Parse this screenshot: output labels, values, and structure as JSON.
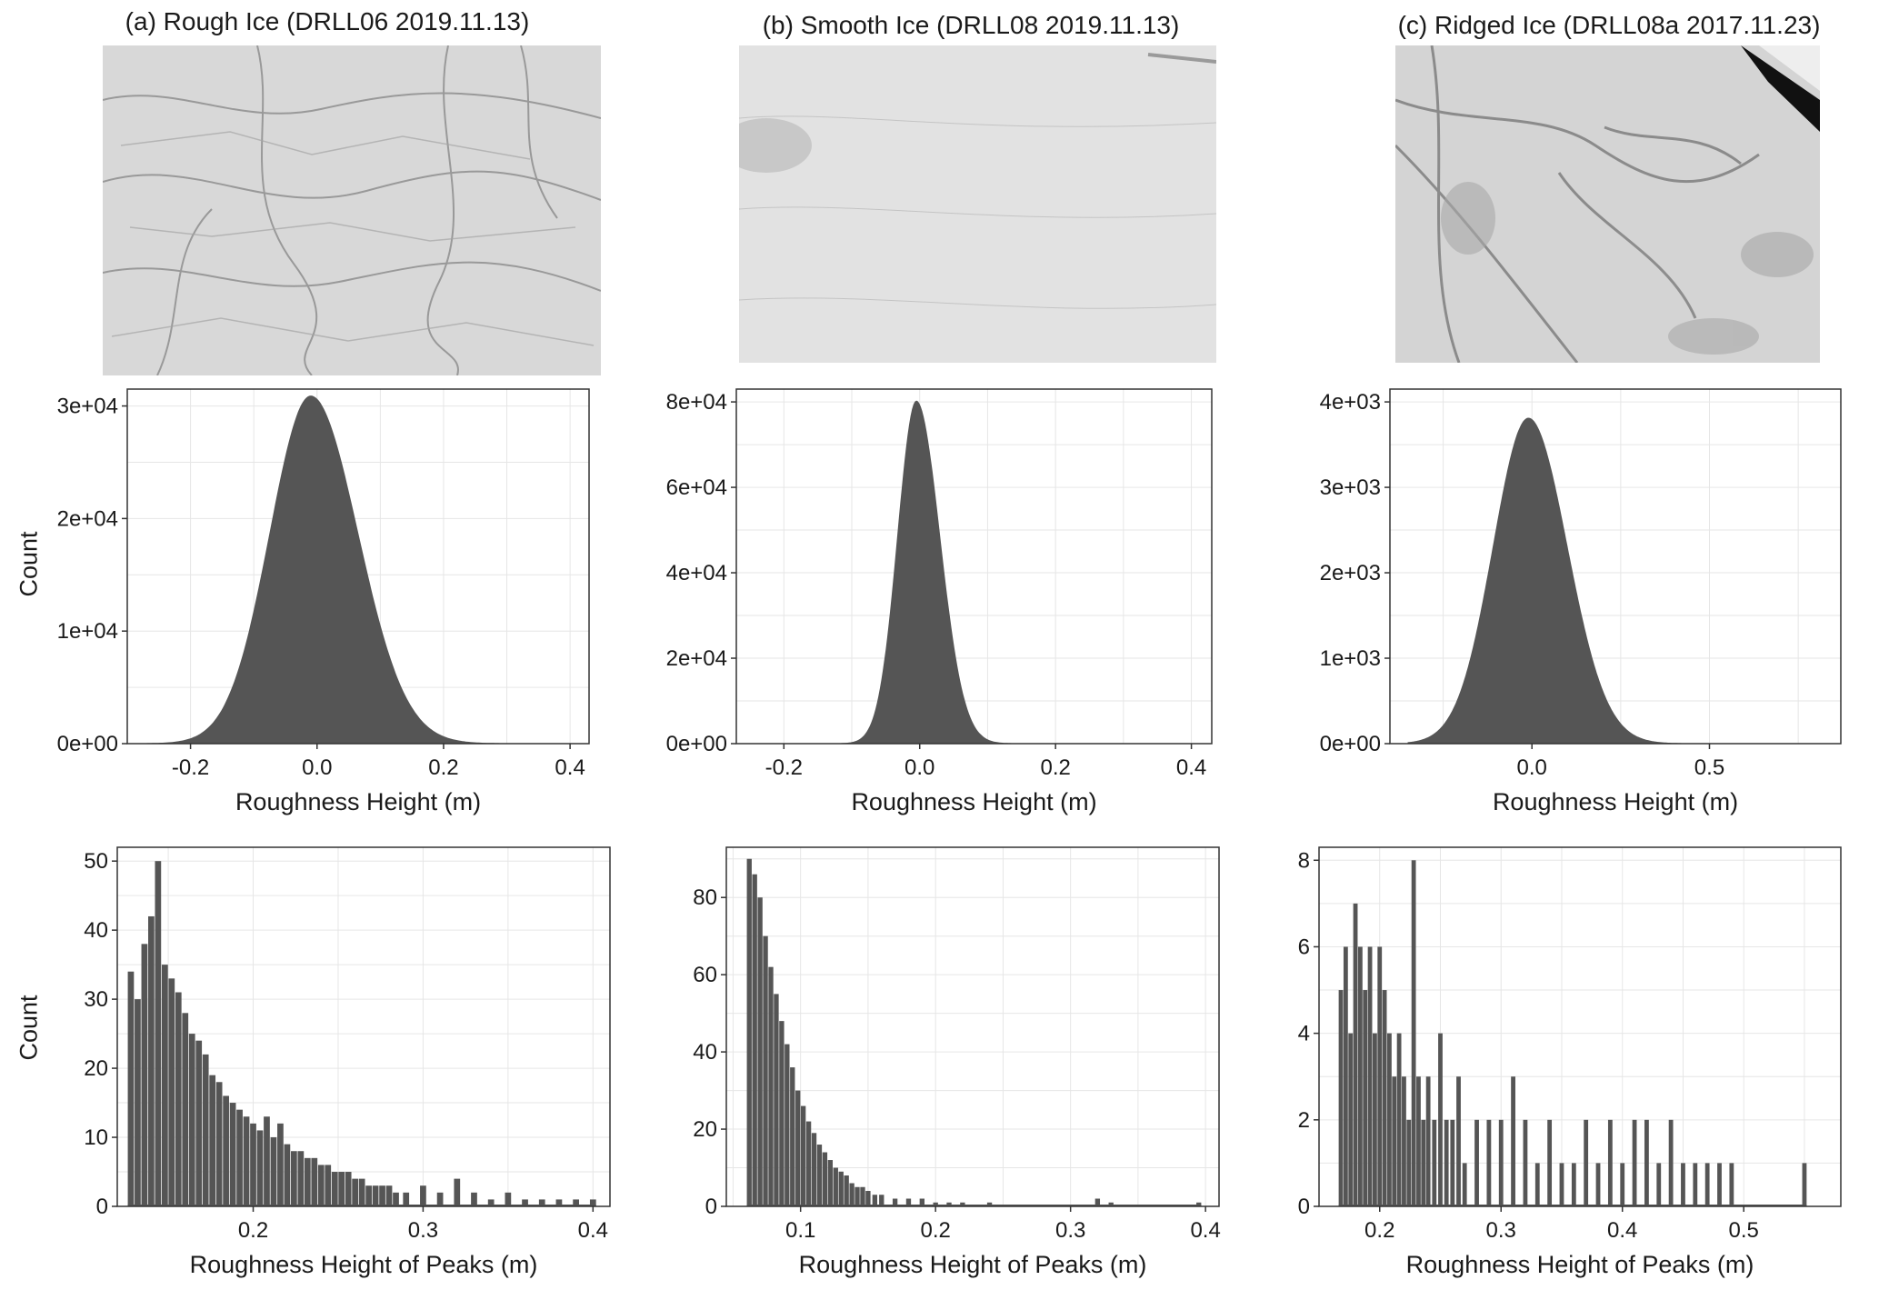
{
  "panels": [
    {
      "title": "(a) Rough Ice (DRLL06 2019.11.13)",
      "photo": "rough-ice-aerial-photo",
      "height_hist": {
        "type": "bar",
        "xlabel": "Roughness Height (m)",
        "ylabel": "Count",
        "xlim": [
          -0.3,
          0.43
        ],
        "ylim": [
          0,
          31500
        ],
        "xticks": [
          -0.2,
          0.0,
          0.2,
          0.4
        ],
        "xtick_labels": [
          "-0.2",
          "0.0",
          "0.2",
          "0.4"
        ],
        "yticks": [
          0,
          10000,
          20000,
          30000
        ],
        "ytick_labels": [
          "0e+00",
          "1e+04",
          "2e+04",
          "3e+04"
        ],
        "distribution": {
          "mode": -0.01,
          "peak": 30800,
          "sigma_left": 0.065,
          "sigma_right": 0.075,
          "x_min": -0.27,
          "x_max": 0.4
        },
        "grid": true
      },
      "peak_hist": {
        "type": "bar",
        "xlabel": "Roughness Height of Peaks (m)",
        "ylabel": "Count",
        "xlim": [
          0.12,
          0.41
        ],
        "ylim": [
          0,
          52
        ],
        "xticks": [
          0.2,
          0.3,
          0.4
        ],
        "xtick_labels": [
          "0.2",
          "0.3",
          "0.4"
        ],
        "yticks": [
          0,
          10,
          20,
          30,
          40,
          50
        ],
        "ytick_labels": [
          "0",
          "10",
          "20",
          "30",
          "40",
          "50"
        ],
        "x": [
          0.128,
          0.132,
          0.136,
          0.14,
          0.144,
          0.148,
          0.152,
          0.156,
          0.16,
          0.164,
          0.168,
          0.172,
          0.176,
          0.18,
          0.184,
          0.188,
          0.192,
          0.196,
          0.2,
          0.204,
          0.208,
          0.212,
          0.216,
          0.22,
          0.224,
          0.228,
          0.232,
          0.236,
          0.24,
          0.244,
          0.248,
          0.252,
          0.256,
          0.26,
          0.264,
          0.268,
          0.272,
          0.276,
          0.28,
          0.284,
          0.29,
          0.3,
          0.31,
          0.32,
          0.33,
          0.34,
          0.35,
          0.36,
          0.37,
          0.38,
          0.39,
          0.4
        ],
        "values": [
          34,
          30,
          38,
          42,
          50,
          35,
          33,
          31,
          28,
          25,
          24,
          22,
          19,
          18,
          16,
          15,
          14,
          13,
          12,
          11,
          13,
          10,
          12,
          9,
          8,
          8,
          7,
          7,
          6,
          6,
          5,
          5,
          5,
          4,
          4,
          3,
          3,
          3,
          3,
          2,
          2,
          3,
          2,
          4,
          2,
          1,
          2,
          1,
          1,
          1,
          1,
          1
        ],
        "grid": true
      }
    },
    {
      "title": "(b) Smooth Ice (DRLL08 2019.11.13)",
      "photo": "smooth-ice-aerial-photo",
      "height_hist": {
        "type": "bar",
        "xlabel": "Roughness Height (m)",
        "ylabel": "",
        "xlim": [
          -0.27,
          0.43
        ],
        "ylim": [
          0,
          83000
        ],
        "xticks": [
          -0.2,
          0.0,
          0.2,
          0.4
        ],
        "xtick_labels": [
          "-0.2",
          "0.0",
          "0.2",
          "0.4"
        ],
        "yticks": [
          0,
          20000,
          40000,
          60000,
          80000
        ],
        "ytick_labels": [
          "0e+00",
          "2e+04",
          "4e+04",
          "6e+04",
          "8e+04"
        ],
        "distribution": {
          "mode": -0.005,
          "peak": 80000,
          "sigma_left": 0.028,
          "sigma_right": 0.035,
          "x_min": -0.16,
          "x_max": 0.4
        },
        "grid": true
      },
      "peak_hist": {
        "type": "bar",
        "xlabel": "Roughness Height of Peaks (m)",
        "ylabel": "",
        "xlim": [
          0.045,
          0.41
        ],
        "ylim": [
          0,
          93
        ],
        "xticks": [
          0.1,
          0.2,
          0.3,
          0.4
        ],
        "xtick_labels": [
          "0.1",
          "0.2",
          "0.3",
          "0.4"
        ],
        "yticks": [
          0,
          20,
          40,
          60,
          80
        ],
        "ytick_labels": [
          "0",
          "20",
          "40",
          "60",
          "80"
        ],
        "x": [
          0.062,
          0.066,
          0.07,
          0.074,
          0.078,
          0.082,
          0.086,
          0.09,
          0.094,
          0.098,
          0.102,
          0.106,
          0.11,
          0.114,
          0.118,
          0.122,
          0.126,
          0.13,
          0.134,
          0.138,
          0.142,
          0.146,
          0.15,
          0.155,
          0.16,
          0.17,
          0.18,
          0.19,
          0.2,
          0.21,
          0.22,
          0.24,
          0.32,
          0.33,
          0.395
        ],
        "values": [
          90,
          86,
          80,
          70,
          62,
          55,
          48,
          42,
          36,
          30,
          26,
          22,
          19,
          16,
          14,
          12,
          10,
          9,
          8,
          6,
          5,
          5,
          4,
          3,
          3,
          2,
          2,
          2,
          1,
          1,
          1,
          1,
          2,
          1,
          1
        ],
        "grid": true
      }
    },
    {
      "title": "(c) Ridged Ice (DRLL08a 2017.11.23)",
      "photo": "ridged-ice-aerial-photo",
      "height_hist": {
        "type": "bar",
        "xlabel": "Roughness Height (m)",
        "ylabel": "",
        "xlim": [
          -0.4,
          0.87
        ],
        "ylim": [
          0,
          4150
        ],
        "xticks": [
          0.0,
          0.5
        ],
        "xtick_labels": [
          "0.0",
          "0.5"
        ],
        "yticks": [
          0,
          1000,
          2000,
          3000,
          4000
        ],
        "ytick_labels": [
          "0e+00",
          "1e+03",
          "2e+03",
          "3e+03",
          "4e+03"
        ],
        "distribution": {
          "mode": -0.01,
          "peak": 3800,
          "sigma_left": 0.1,
          "sigma_right": 0.11,
          "x_min": -0.35,
          "x_max": 0.55
        },
        "grid": true
      },
      "peak_hist": {
        "type": "bar",
        "xlabel": "Roughness Height of Peaks (m)",
        "ylabel": "",
        "xlim": [
          0.15,
          0.58
        ],
        "ylim": [
          0,
          8.3
        ],
        "xticks": [
          0.2,
          0.3,
          0.4,
          0.5
        ],
        "xtick_labels": [
          "0.2",
          "0.3",
          "0.4",
          "0.5"
        ],
        "yticks": [
          0,
          2,
          4,
          6,
          8
        ],
        "ytick_labels": [
          "0",
          "2",
          "4",
          "6",
          "8"
        ],
        "x": [
          0.168,
          0.172,
          0.176,
          0.18,
          0.184,
          0.188,
          0.192,
          0.196,
          0.2,
          0.204,
          0.208,
          0.212,
          0.216,
          0.22,
          0.224,
          0.228,
          0.232,
          0.236,
          0.24,
          0.245,
          0.25,
          0.255,
          0.26,
          0.265,
          0.27,
          0.28,
          0.29,
          0.3,
          0.31,
          0.32,
          0.33,
          0.34,
          0.35,
          0.36,
          0.37,
          0.38,
          0.39,
          0.4,
          0.41,
          0.42,
          0.43,
          0.44,
          0.45,
          0.46,
          0.47,
          0.48,
          0.49,
          0.55
        ],
        "values": [
          5,
          6,
          4,
          7,
          6,
          5,
          6,
          4,
          6,
          5,
          4,
          3,
          4,
          3,
          2,
          8,
          3,
          2,
          3,
          2,
          4,
          2,
          2,
          3,
          1,
          2,
          2,
          2,
          3,
          2,
          1,
          2,
          1,
          1,
          2,
          1,
          2,
          1,
          2,
          2,
          1,
          2,
          1,
          1,
          1,
          1,
          1,
          1
        ],
        "grid": true
      }
    }
  ],
  "colors": {
    "bar": "#555555",
    "grid": "#e6e6e6",
    "axis": "#333333",
    "panel_bg": "#ffffff"
  }
}
